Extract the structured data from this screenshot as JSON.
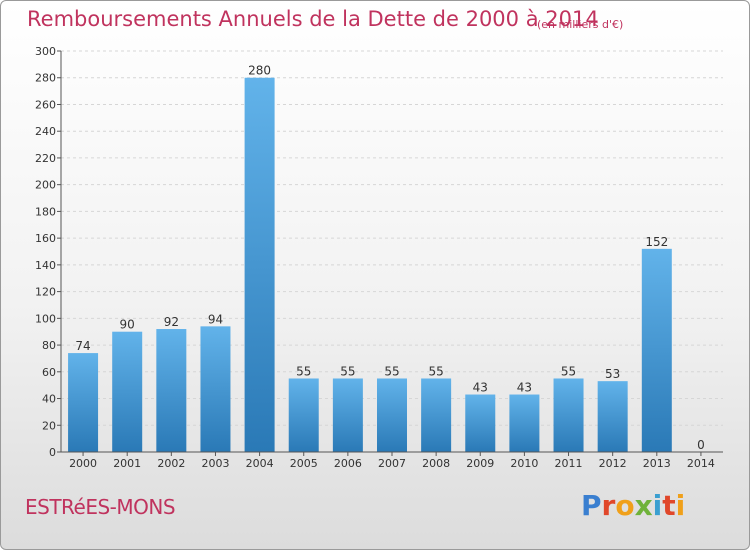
{
  "header": {
    "title": "Remboursements Annuels de la Dette de 2000 à 2014",
    "unit": "(en milliers d'€)"
  },
  "footer": {
    "commune": "ESTRéES-MONS",
    "brand_logo": "Proxiti"
  },
  "colors": {
    "title": "#c0335e",
    "bar_top": "#62b3ea",
    "bar_bottom": "#2a79b6"
  },
  "chart_data": {
    "type": "bar",
    "categories": [
      "2000",
      "2001",
      "2002",
      "2003",
      "2004",
      "2005",
      "2006",
      "2007",
      "2008",
      "2009",
      "2010",
      "2011",
      "2012",
      "2013",
      "2014"
    ],
    "values": [
      74,
      90,
      92,
      94,
      280,
      55,
      55,
      55,
      55,
      43,
      43,
      55,
      53,
      152,
      0
    ],
    "data_labels": [
      "74",
      "90",
      "92",
      "94",
      "280",
      "55",
      "55",
      "55",
      "55",
      "43",
      "43",
      "55",
      "53",
      "152",
      "0"
    ],
    "yticks": [
      0,
      20,
      40,
      60,
      80,
      100,
      120,
      140,
      160,
      180,
      200,
      220,
      240,
      260,
      280,
      300
    ],
    "ylim": [
      0,
      300
    ],
    "grid": true,
    "legend": "none"
  }
}
